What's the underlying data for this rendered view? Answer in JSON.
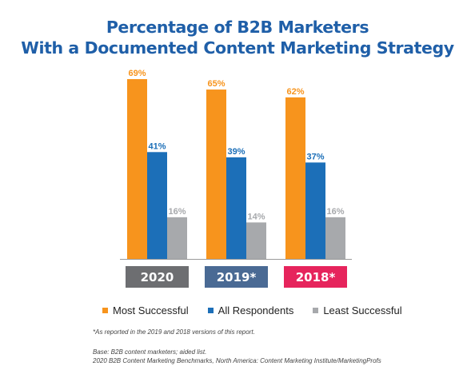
{
  "chart_data": {
    "type": "bar",
    "title_line1": "Percentage of B2B Marketers",
    "title_line2": "With a Documented Content Marketing Strategy",
    "categories": [
      "2020",
      "2019*",
      "2018*"
    ],
    "category_colors": [
      "#6d6e71",
      "#4a6a94",
      "#e6245c"
    ],
    "series": [
      {
        "name": "Most Successful",
        "color": "#f7941d",
        "values": [
          69,
          65,
          62
        ],
        "labels": [
          "69%",
          "65%",
          "62%"
        ]
      },
      {
        "name": "All Respondents",
        "color": "#1c6fb8",
        "values": [
          41,
          39,
          37
        ],
        "labels": [
          "41%",
          "39%",
          "37%"
        ]
      },
      {
        "name": "Least Successful",
        "color": "#a7a9ac",
        "values": [
          16,
          14,
          16
        ],
        "labels": [
          "16%",
          "14%",
          "16%"
        ]
      }
    ],
    "ylim": [
      0,
      69
    ],
    "grid": false,
    "legend_position": "bottom"
  },
  "footnotes": {
    "asterisk_note": "*As reported in the 2019 and 2018 versions of this report.",
    "base": "Base: B2B content marketers; aided list.",
    "source": "2020 B2B Content Marketing Benchmarks, North America: Content Marketing Institute/MarketingProfs"
  }
}
